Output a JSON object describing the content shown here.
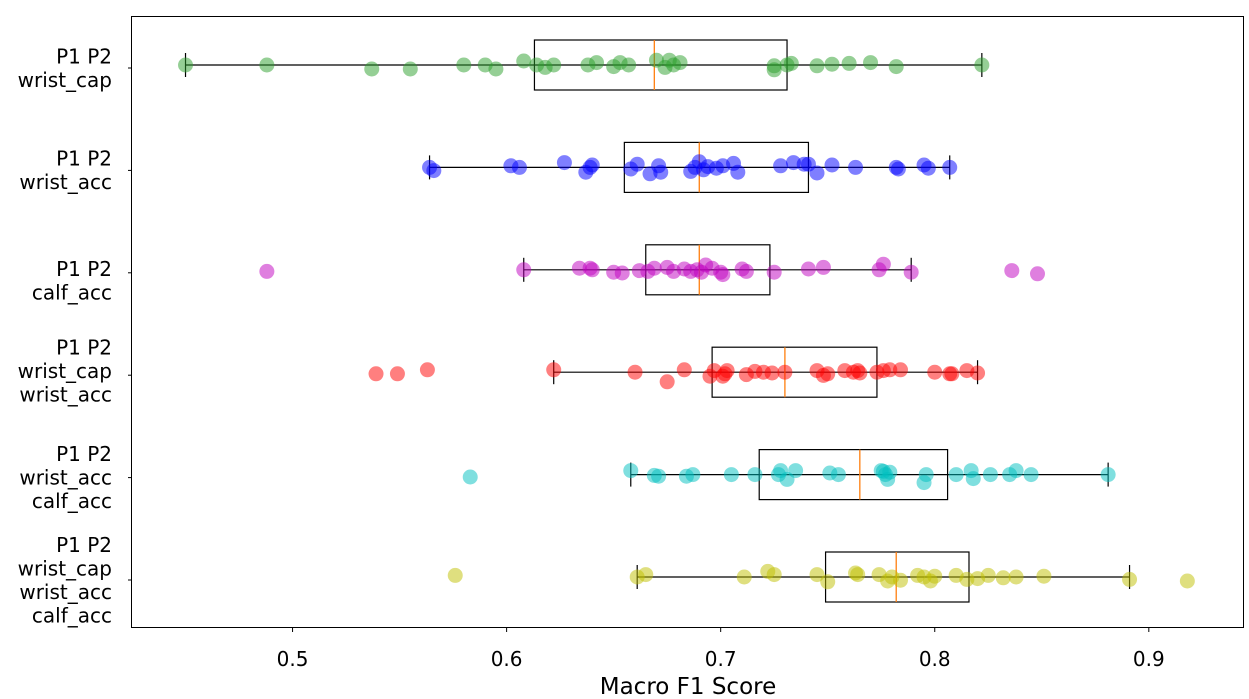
{
  "chart_data": {
    "type": "boxplot",
    "orientation": "horizontal",
    "title": "",
    "xlabel": "Macro F1 Score",
    "ylabel": "",
    "xlim": [
      0.425,
      0.944
    ],
    "xticks": [
      0.5,
      0.6,
      0.7,
      0.8,
      0.9
    ],
    "xtick_labels": [
      "0.5",
      "0.6",
      "0.7",
      "0.8",
      "0.9"
    ],
    "grid": false,
    "median_color": "#ff7f0e",
    "groups": [
      {
        "name": "P1 P2 wrist_cap",
        "label_lines": [
          "P1 P2",
          "wrist_cap"
        ],
        "color": "#2ca02c",
        "whisker_low": 0.45,
        "q1": 0.613,
        "median": 0.669,
        "q3": 0.731,
        "whisker_high": 0.822,
        "points": [
          0.45,
          0.488,
          0.537,
          0.555,
          0.58,
          0.59,
          0.595,
          0.608,
          0.614,
          0.618,
          0.622,
          0.638,
          0.642,
          0.65,
          0.653,
          0.657,
          0.67,
          0.674,
          0.676,
          0.678,
          0.681,
          0.725,
          0.725,
          0.731,
          0.733,
          0.745,
          0.752,
          0.76,
          0.77,
          0.782,
          0.822
        ],
        "jitter": [
          0,
          0,
          0.5,
          0.5,
          0,
          0,
          0.5,
          -0.5,
          0,
          0.3,
          0,
          0,
          -0.3,
          0.2,
          -0.3,
          0,
          -0.6,
          0.3,
          -0.6,
          0,
          -0.3,
          0.1,
          0.6,
          0,
          -0.2,
          0.1,
          -0.1,
          -0.2,
          -0.3,
          0.2,
          0
        ]
      },
      {
        "name": "P1 P2 wrist_acc",
        "label_lines": [
          "P1 P2",
          "wrist_acc"
        ],
        "color": "#0000ff",
        "whisker_low": 0.564,
        "q1": 0.655,
        "median": 0.69,
        "q3": 0.741,
        "whisker_high": 0.807,
        "points": [
          0.564,
          0.566,
          0.602,
          0.606,
          0.627,
          0.637,
          0.639,
          0.64,
          0.658,
          0.661,
          0.667,
          0.671,
          0.672,
          0.686,
          0.688,
          0.69,
          0.692,
          0.694,
          0.698,
          0.701,
          0.706,
          0.708,
          0.728,
          0.734,
          0.739,
          0.741,
          0.745,
          0.752,
          0.763,
          0.782,
          0.783,
          0.795,
          0.797,
          0.807
        ],
        "jitter": [
          0,
          0.4,
          -0.2,
          0,
          -0.6,
          0.6,
          0,
          -0.3,
          0.2,
          -0.4,
          0.8,
          -0.2,
          0.6,
          0.5,
          0,
          -0.7,
          0.3,
          -0.1,
          0.1,
          -0.2,
          -0.5,
          0.6,
          -0.2,
          -0.6,
          -0.4,
          -0.4,
          0.7,
          -0.3,
          0,
          0,
          0.2,
          -0.3,
          0.1,
          0
        ]
      },
      {
        "name": "P1 P2 calf_acc",
        "label_lines": [
          "P1 P2",
          "calf_acc"
        ],
        "color": "#bf00bf",
        "whisker_low": 0.608,
        "q1": 0.665,
        "median": 0.69,
        "q3": 0.723,
        "whisker_high": 0.789,
        "points": [
          0.488,
          0.608,
          0.634,
          0.639,
          0.64,
          0.65,
          0.654,
          0.662,
          0.666,
          0.669,
          0.675,
          0.678,
          0.683,
          0.686,
          0.689,
          0.691,
          0.693,
          0.696,
          0.7,
          0.701,
          0.71,
          0.712,
          0.725,
          0.741,
          0.748,
          0.774,
          0.776,
          0.789,
          0.836,
          0.848
        ],
        "jitter": [
          0.2,
          0,
          -0.2,
          -0.2,
          0,
          0.3,
          0.4,
          0.1,
          0.2,
          -0.2,
          -0.3,
          0.2,
          -0.1,
          0.2,
          0,
          0.3,
          -0.6,
          -0.2,
          0.3,
          0.6,
          -0.1,
          0.2,
          0.3,
          -0.1,
          -0.3,
          0,
          -0.7,
          0.3,
          0.1,
          0.5
        ],
        "label_dy": 8
      },
      {
        "name": "P1 P2 wrist_cap wrist_acc",
        "label_lines": [
          "P1 P2",
          "wrist_cap",
          "wrist_acc"
        ],
        "color": "#ff0000",
        "whisker_low": 0.622,
        "q1": 0.696,
        "median": 0.73,
        "q3": 0.773,
        "whisker_high": 0.82,
        "points": [
          0.539,
          0.549,
          0.563,
          0.622,
          0.66,
          0.675,
          0.683,
          0.695,
          0.697,
          0.701,
          0.702,
          0.703,
          0.712,
          0.716,
          0.72,
          0.724,
          0.73,
          0.745,
          0.748,
          0.75,
          0.758,
          0.762,
          0.764,
          0.765,
          0.773,
          0.776,
          0.779,
          0.784,
          0.8,
          0.807,
          0.808,
          0.815,
          0.82
        ],
        "jitter": [
          0.2,
          0.2,
          -0.3,
          -0.3,
          0,
          1.2,
          -0.3,
          0.5,
          -0.2,
          0.5,
          0.2,
          -0.2,
          0.3,
          -0.1,
          0,
          0.1,
          0,
          -0.2,
          0.4,
          0.2,
          -0.2,
          0,
          -0.2,
          0.1,
          0,
          -0.2,
          -0.3,
          -0.3,
          0,
          0.2,
          0.2,
          -0.2,
          0.1
        ],
        "label_dy": -4
      },
      {
        "name": "P1 P2 wrist_acc calf_acc",
        "label_lines": [
          "P1 P2",
          "wrist_acc",
          "calf_acc"
        ],
        "color": "#00bfbf",
        "whisker_low": 0.658,
        "q1": 0.718,
        "median": 0.765,
        "q3": 0.806,
        "whisker_high": 0.881,
        "points": [
          0.583,
          0.658,
          0.669,
          0.671,
          0.684,
          0.687,
          0.705,
          0.716,
          0.727,
          0.728,
          0.731,
          0.735,
          0.751,
          0.755,
          0.775,
          0.776,
          0.777,
          0.778,
          0.779,
          0.795,
          0.796,
          0.81,
          0.817,
          0.818,
          0.826,
          0.835,
          0.838,
          0.845,
          0.881
        ],
        "jitter": [
          0.3,
          -0.5,
          0.1,
          0.2,
          0.2,
          0,
          0,
          0,
          0,
          -0.5,
          0.6,
          -0.5,
          -0.2,
          0,
          -0.5,
          -0.4,
          0,
          0.6,
          -0.3,
          1.0,
          0,
          0,
          -0.5,
          0.5,
          0,
          0,
          -0.5,
          0,
          0
        ]
      },
      {
        "name": "P1 P2 wrist_cap wrist_acc calf_acc",
        "label_lines": [
          "P1 P2",
          "wrist_cap",
          "wrist_acc",
          "calf_acc"
        ],
        "color": "#bfbf00",
        "whisker_low": 0.661,
        "q1": 0.749,
        "median": 0.782,
        "q3": 0.816,
        "whisker_high": 0.891,
        "points": [
          0.576,
          0.661,
          0.665,
          0.711,
          0.722,
          0.725,
          0.745,
          0.75,
          0.763,
          0.764,
          0.774,
          0.778,
          0.78,
          0.784,
          0.792,
          0.795,
          0.798,
          0.8,
          0.81,
          0.815,
          0.82,
          0.825,
          0.832,
          0.838,
          0.851,
          0.891,
          0.918
        ],
        "jitter": [
          -0.2,
          0,
          -0.3,
          0,
          -0.7,
          -0.3,
          -0.3,
          0.6,
          -0.5,
          -0.3,
          -0.3,
          0.5,
          0,
          0.4,
          -0.2,
          0,
          0.5,
          -0.1,
          -0.2,
          0.3,
          0.2,
          -0.2,
          0.1,
          0,
          -0.1,
          0.3,
          0.5
        ]
      }
    ]
  }
}
